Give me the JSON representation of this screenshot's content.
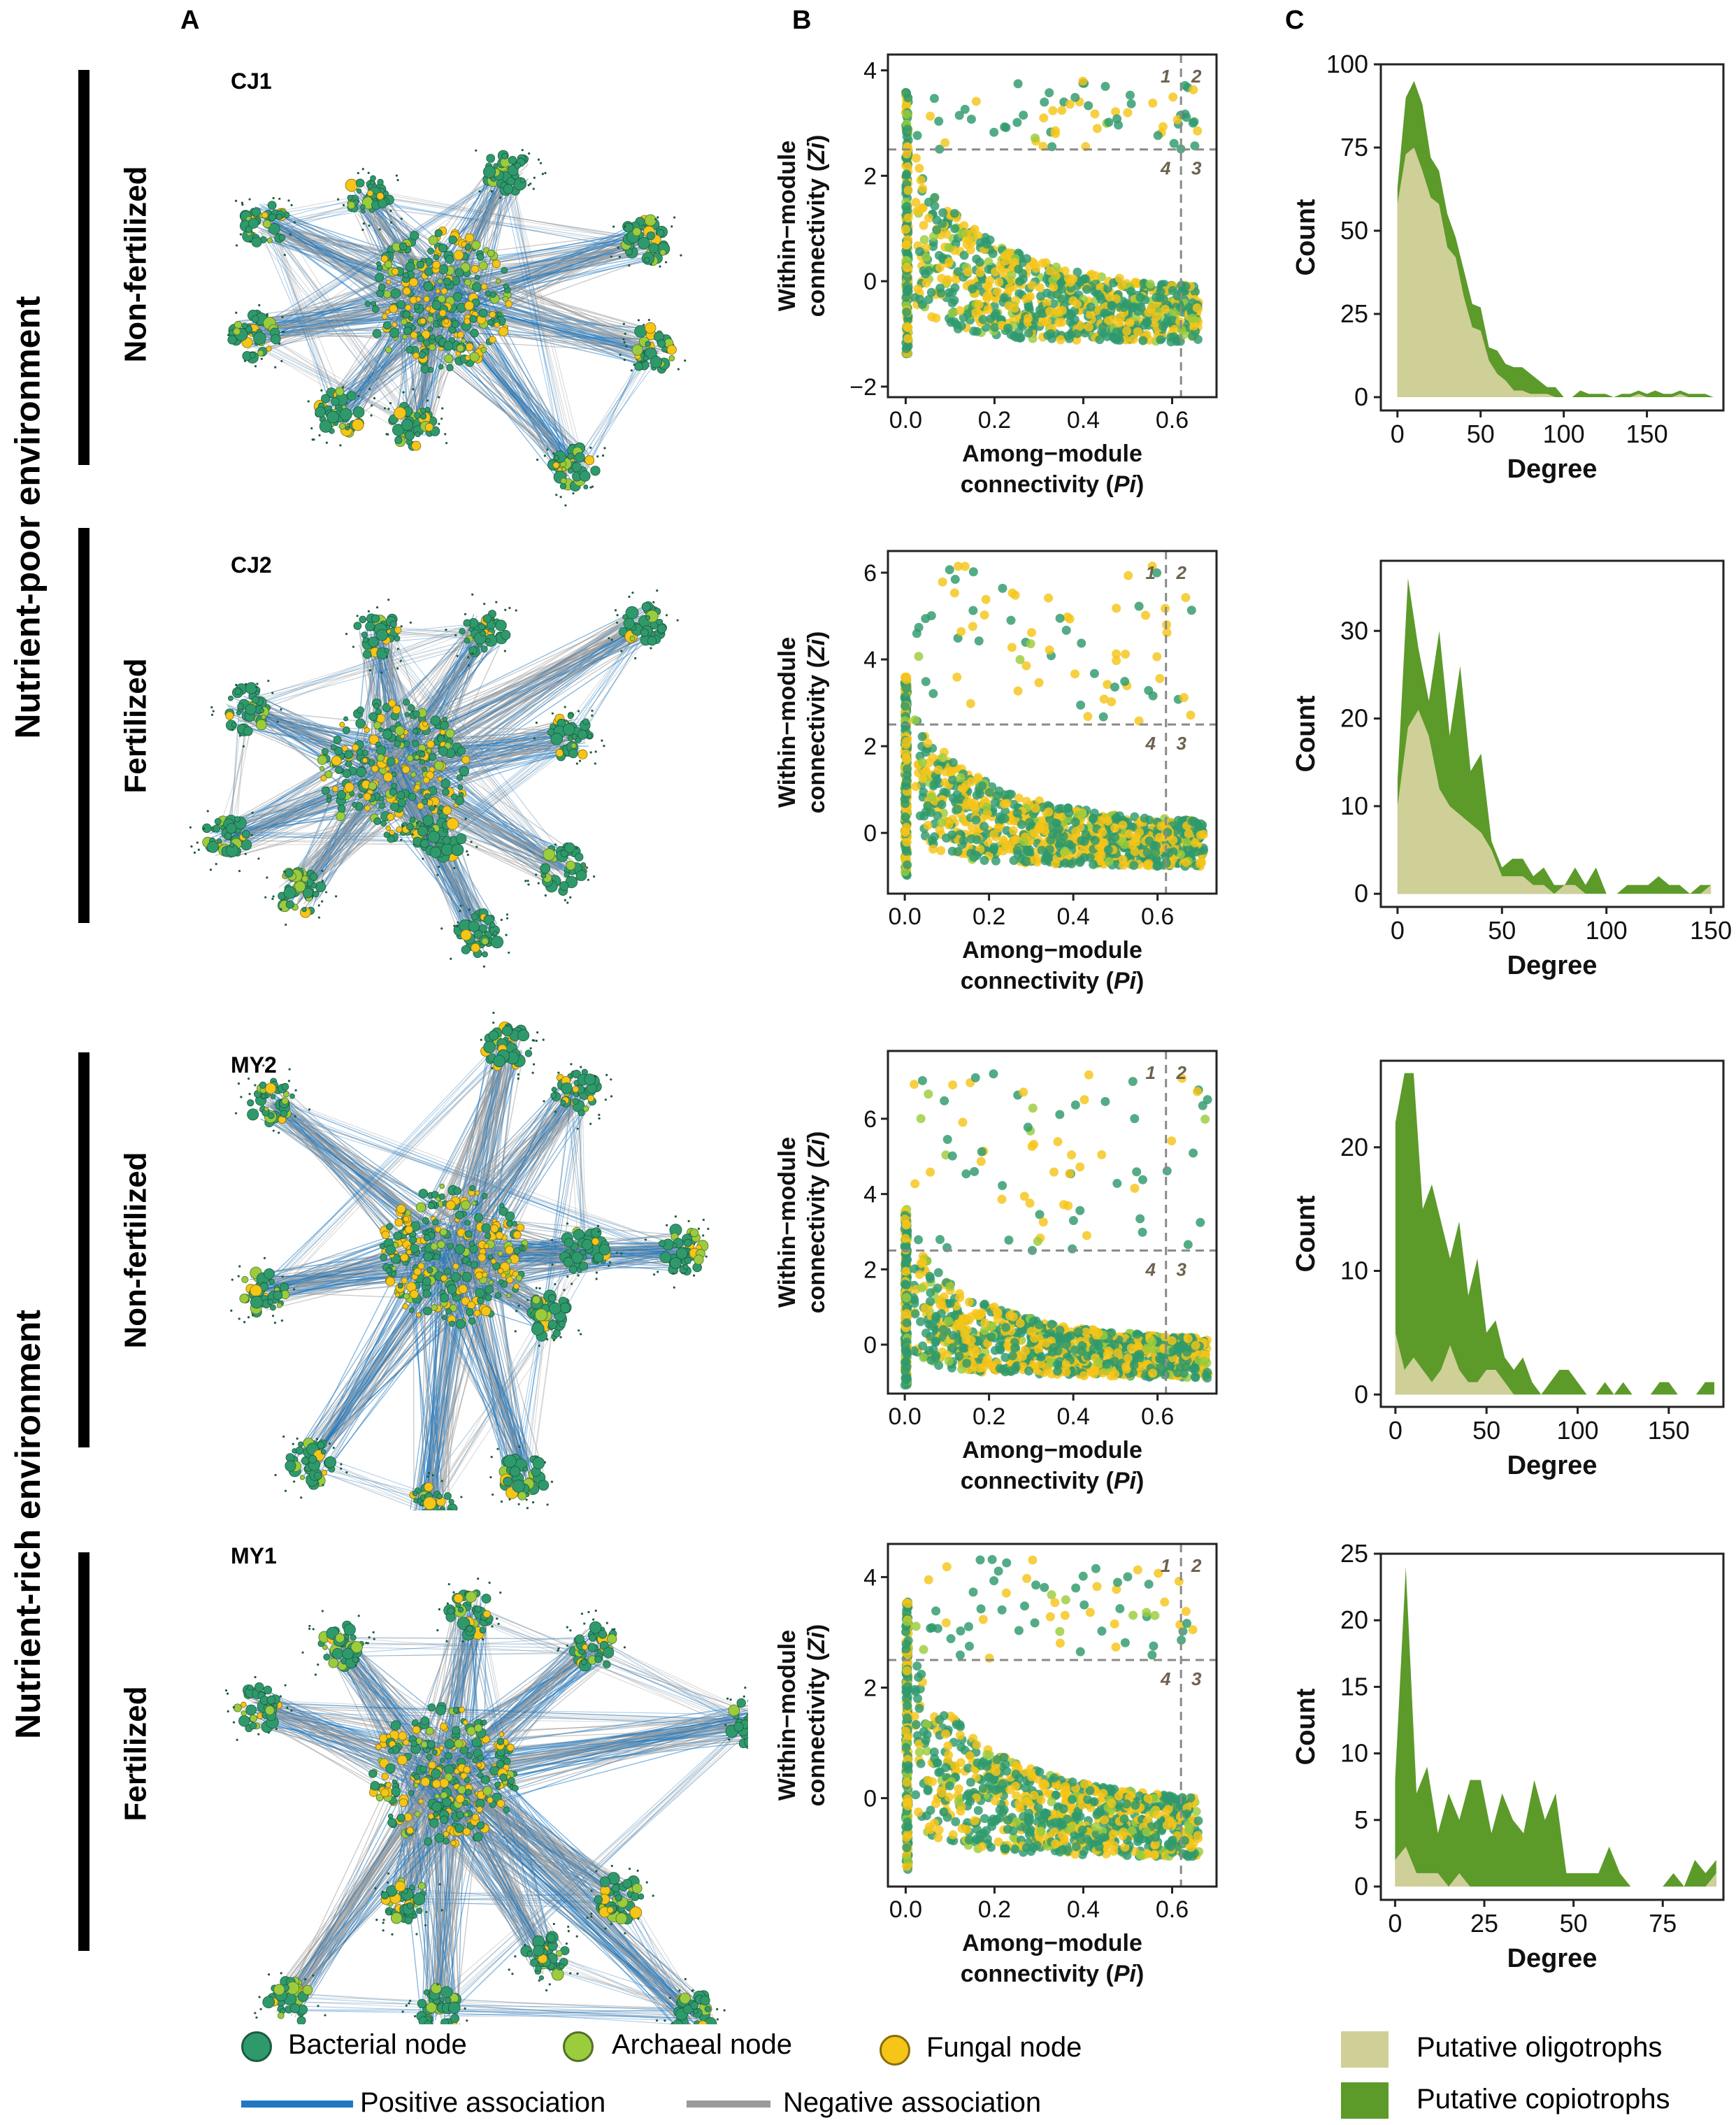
{
  "panels": {
    "a": "A",
    "b": "B",
    "c": "C"
  },
  "environments": [
    {
      "label": "Nutrient-poor environment"
    },
    {
      "label": "Nutrient-rich environment"
    }
  ],
  "treatments": [
    "Non-fertilized",
    "Fertilized",
    "Non-fertilized",
    "Fertilized"
  ],
  "networks": [
    "CJ1",
    "CJ2",
    "MY2",
    "MY1"
  ],
  "legend": {
    "bacterial": "Bacterial node",
    "archaeal": "Archaeal node",
    "fungal": "Fungal node",
    "positive": "Positive association",
    "negative": "Negative association",
    "oligotrophs": "Putative oligotrophs",
    "copiotrophs": "Putative copiotrophs"
  },
  "colors": {
    "bacterial": "#2e9a6c",
    "archaeal": "#9bcc3c",
    "fungal": "#f5c518",
    "positive": "#1f78c0",
    "negative": "#9a9a9a",
    "oligotrophs": "#cfcf98",
    "copiotrophs": "#5c9a2a",
    "threshold": "#8a8a8a",
    "quadrant_text": "#6e6250"
  },
  "chart_data": [
    {
      "type": "scatter",
      "network": "CJ1",
      "xlabel": "Among−module connectivity (Pi)",
      "ylabel": "Within−module connectivity (Zi)",
      "xlim": [
        -0.04,
        0.7
      ],
      "ylim": [
        -2.2,
        4.3
      ],
      "xticks": [
        0.0,
        0.2,
        0.4,
        0.6
      ],
      "xtick_labels": [
        "0.0",
        "0.2",
        "0.4",
        "0.6"
      ],
      "yticks": [
        -2,
        0,
        2,
        4
      ],
      "ytick_labels": [
        "−2",
        "0",
        "2",
        "4"
      ],
      "pi_threshold": 0.62,
      "zi_threshold": 2.5,
      "quadrants": [
        "1",
        "2",
        "3",
        "4"
      ],
      "zi_range": [
        -1.4,
        3.8
      ],
      "pi_max": 0.66,
      "n_points": 1100
    },
    {
      "type": "scatter",
      "network": "CJ2",
      "xlabel": "Among−module connectivity (Pi)",
      "ylabel": "Within−module connectivity (Zi)",
      "xlim": [
        -0.04,
        0.74
      ],
      "ylim": [
        -1.4,
        6.5
      ],
      "xticks": [
        0.0,
        0.2,
        0.4,
        0.6
      ],
      "xtick_labels": [
        "0.0",
        "0.2",
        "0.4",
        "0.6"
      ],
      "yticks": [
        0,
        2,
        4,
        6
      ],
      "ytick_labels": [
        "0",
        "2",
        "4",
        "6"
      ],
      "pi_threshold": 0.62,
      "zi_threshold": 2.5,
      "quadrants": [
        "1",
        "2",
        "3",
        "4"
      ],
      "zi_range": [
        -1.0,
        6.2
      ],
      "pi_max": 0.71,
      "n_points": 1300
    },
    {
      "type": "scatter",
      "network": "MY2",
      "xlabel": "Among−module connectivity (Pi)",
      "ylabel": "Within−module connectivity (Zi)",
      "xlim": [
        -0.04,
        0.74
      ],
      "ylim": [
        -1.3,
        7.8
      ],
      "xticks": [
        0.0,
        0.2,
        0.4,
        0.6
      ],
      "xtick_labels": [
        "0.0",
        "0.2",
        "0.4",
        "0.6"
      ],
      "yticks": [
        0,
        2,
        4,
        6
      ],
      "ytick_labels": [
        "0",
        "2",
        "4",
        "6"
      ],
      "pi_threshold": 0.62,
      "zi_threshold": 2.5,
      "quadrants": [
        "1",
        "2",
        "3",
        "4"
      ],
      "zi_range": [
        -1.1,
        7.4
      ],
      "pi_max": 0.72,
      "n_points": 1400
    },
    {
      "type": "scatter",
      "network": "MY1",
      "xlabel": "Among−module connectivity (Pi)",
      "ylabel": "Within−module connectivity (Zi)",
      "xlim": [
        -0.04,
        0.7
      ],
      "ylim": [
        -1.6,
        4.6
      ],
      "xticks": [
        0.0,
        0.2,
        0.4,
        0.6
      ],
      "xtick_labels": [
        "0.0",
        "0.2",
        "0.4",
        "0.6"
      ],
      "yticks": [
        0,
        2,
        4
      ],
      "ytick_labels": [
        "0",
        "2",
        "4"
      ],
      "pi_threshold": 0.62,
      "zi_threshold": 2.5,
      "quadrants": [
        "1",
        "2",
        "3",
        "4"
      ],
      "zi_range": [
        -1.3,
        4.4
      ],
      "pi_max": 0.66,
      "n_points": 1200
    },
    {
      "type": "area",
      "network": "CJ1",
      "xlabel": "Degree",
      "ylabel": "Count",
      "xlim": [
        -10,
        196
      ],
      "ylim": [
        -4,
        100
      ],
      "xticks": [
        0,
        50,
        100,
        150
      ],
      "yticks": [
        0,
        25,
        50,
        75,
        100
      ],
      "x": [
        0,
        5,
        10,
        15,
        20,
        25,
        30,
        35,
        40,
        45,
        50,
        55,
        60,
        65,
        70,
        75,
        80,
        85,
        90,
        95,
        100,
        105,
        110,
        115,
        120,
        125,
        130,
        135,
        140,
        145,
        150,
        155,
        160,
        165,
        170,
        175,
        180,
        185,
        190
      ],
      "series": [
        {
          "name": "Putative copiotrophs",
          "values": [
            63,
            90,
            95,
            88,
            72,
            68,
            55,
            48,
            38,
            28,
            27,
            15,
            14,
            10,
            9,
            9,
            7,
            5,
            3,
            3,
            0,
            0,
            2,
            1,
            1,
            1,
            0,
            1,
            1,
            2,
            1,
            2,
            1,
            1,
            2,
            1,
            1,
            1,
            0
          ]
        },
        {
          "name": "Putative oligotrophs",
          "values": [
            58,
            73,
            75,
            68,
            60,
            58,
            45,
            42,
            30,
            21,
            20,
            11,
            7,
            5,
            2,
            2,
            1,
            1,
            1,
            0,
            0,
            0,
            0,
            0,
            0,
            0,
            0,
            0,
            0,
            1,
            0,
            0,
            0,
            0,
            1,
            0,
            0,
            0,
            0
          ]
        }
      ]
    },
    {
      "type": "area",
      "network": "CJ2",
      "xlabel": "Degree",
      "ylabel": "Count",
      "xlim": [
        -8,
        156
      ],
      "ylim": [
        -1.5,
        38
      ],
      "xticks": [
        0,
        50,
        100,
        150
      ],
      "yticks": [
        0,
        10,
        20,
        30
      ],
      "x": [
        0,
        5,
        10,
        15,
        20,
        25,
        30,
        35,
        40,
        45,
        50,
        55,
        60,
        65,
        70,
        75,
        80,
        85,
        90,
        95,
        100,
        105,
        110,
        115,
        120,
        125,
        130,
        135,
        140,
        145,
        150
      ],
      "series": [
        {
          "name": "Putative copiotrophs",
          "values": [
            13,
            36,
            28,
            22,
            30,
            18,
            26,
            14,
            16,
            6,
            3,
            4,
            4,
            2,
            3,
            1,
            1,
            3,
            1,
            3,
            0,
            0,
            1,
            1,
            1,
            2,
            1,
            1,
            0,
            1,
            1
          ]
        },
        {
          "name": "Putative oligotrophs",
          "values": [
            10,
            19,
            21,
            18,
            12,
            10,
            9,
            8,
            7,
            5,
            2,
            2,
            2,
            1,
            1,
            0,
            1,
            1,
            0,
            0,
            0,
            0,
            0,
            0,
            0,
            0,
            0,
            0,
            0,
            0,
            1
          ]
        }
      ]
    },
    {
      "type": "area",
      "network": "MY2",
      "xlabel": "Degree",
      "ylabel": "Count",
      "xlim": [
        -8,
        180
      ],
      "ylim": [
        -1,
        27
      ],
      "xticks": [
        0,
        50,
        100,
        150
      ],
      "yticks": [
        0,
        10,
        20
      ],
      "x": [
        0,
        5,
        10,
        15,
        20,
        25,
        30,
        35,
        40,
        45,
        50,
        55,
        60,
        65,
        70,
        75,
        80,
        85,
        90,
        95,
        100,
        105,
        110,
        115,
        120,
        125,
        130,
        135,
        140,
        145,
        150,
        155,
        160,
        165,
        170,
        175
      ],
      "series": [
        {
          "name": "Putative copiotrophs",
          "values": [
            22,
            26,
            26,
            15,
            17,
            14,
            11,
            14,
            8,
            11,
            5,
            6,
            3,
            2,
            3,
            1,
            0,
            1,
            2,
            2,
            1,
            0,
            0,
            1,
            0,
            1,
            0,
            0,
            0,
            1,
            1,
            0,
            0,
            0,
            1,
            1
          ]
        },
        {
          "name": "Putative oligotrophs",
          "values": [
            5,
            2,
            3,
            2,
            1,
            2,
            4,
            2,
            1,
            1,
            2,
            2,
            1,
            0,
            0,
            0,
            0,
            0,
            0,
            0,
            0,
            0,
            0,
            0,
            0,
            0,
            0,
            0,
            0,
            0,
            0,
            0,
            0,
            0,
            0,
            0
          ]
        }
      ]
    },
    {
      "type": "area",
      "network": "MY1",
      "xlabel": "Degree",
      "ylabel": "Count",
      "xlim": [
        -4,
        92
      ],
      "ylim": [
        -1,
        25
      ],
      "xticks": [
        0,
        25,
        50,
        75
      ],
      "yticks": [
        0,
        5,
        10,
        15,
        20,
        25
      ],
      "x": [
        0,
        3,
        6,
        9,
        12,
        15,
        18,
        21,
        24,
        27,
        30,
        33,
        36,
        39,
        42,
        45,
        48,
        51,
        54,
        57,
        60,
        63,
        66,
        69,
        72,
        75,
        78,
        81,
        84,
        87,
        90
      ],
      "series": [
        {
          "name": "Putative copiotrophs",
          "values": [
            8,
            24,
            7,
            9,
            4,
            7,
            5,
            8,
            8,
            4,
            7,
            5,
            4,
            8,
            5,
            7,
            1,
            1,
            1,
            1,
            3,
            1,
            0,
            0,
            0,
            0,
            1,
            0,
            2,
            1,
            2
          ]
        },
        {
          "name": "Putative oligotrophs",
          "values": [
            2,
            3,
            1,
            1,
            1,
            0,
            1,
            0,
            0,
            0,
            0,
            0,
            0,
            0,
            0,
            0,
            0,
            0,
            0,
            0,
            0,
            0,
            0,
            0,
            0,
            0,
            0,
            0,
            0,
            0,
            1
          ]
        }
      ]
    }
  ]
}
